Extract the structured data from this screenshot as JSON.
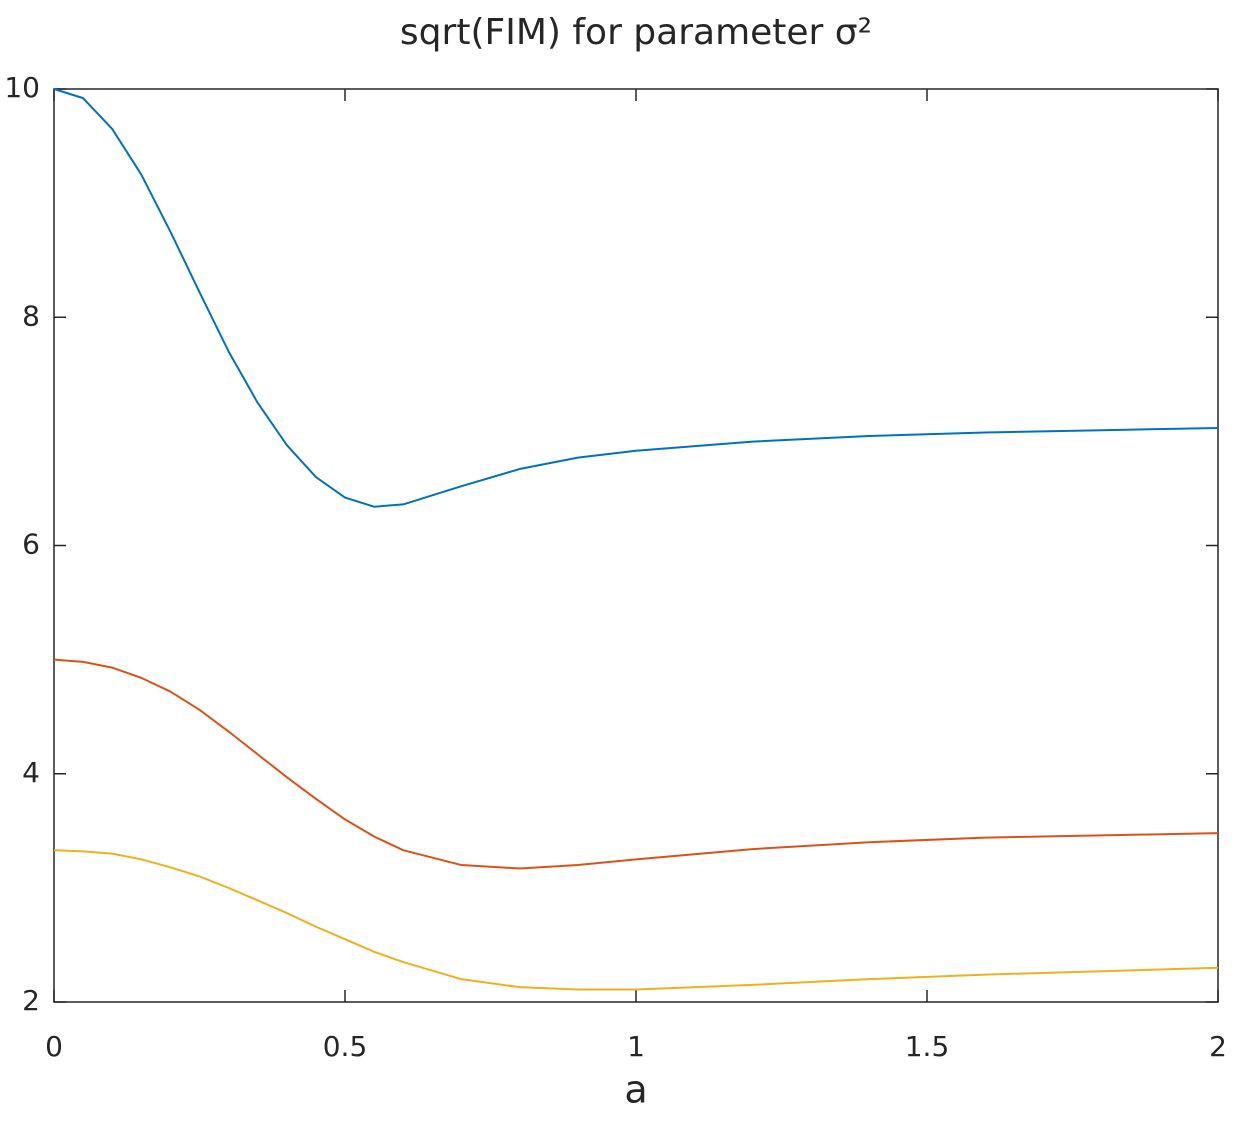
{
  "chart_data": {
    "type": "line",
    "title": "sqrt(FIM) for parameter σ²",
    "x_label": "a",
    "x": [
      0,
      0.05,
      0.1,
      0.15,
      0.2,
      0.25,
      0.3,
      0.35,
      0.4,
      0.45,
      0.5,
      0.55,
      0.6,
      0.7,
      0.8,
      0.9,
      1.0,
      1.2,
      1.4,
      1.6,
      1.8,
      2.0
    ],
    "series": [
      {
        "color": "#0072bd",
        "values": [
          10,
          9.92,
          9.65,
          9.25,
          8.75,
          8.22,
          7.7,
          7.25,
          6.88,
          6.6,
          6.42,
          6.34,
          6.36,
          6.52,
          6.67,
          6.77,
          6.83,
          6.91,
          6.96,
          6.99,
          7.01,
          7.03
        ]
      },
      {
        "color": "#d95319",
        "values": [
          5,
          4.98,
          4.93,
          4.84,
          4.72,
          4.56,
          4.37,
          4.17,
          3.97,
          3.78,
          3.6,
          3.45,
          3.33,
          3.2,
          3.17,
          3.2,
          3.25,
          3.34,
          3.4,
          3.44,
          3.46,
          3.48
        ]
      },
      {
        "color": "#edb120",
        "values": [
          3.33,
          3.32,
          3.3,
          3.25,
          3.18,
          3.1,
          3.0,
          2.89,
          2.78,
          2.66,
          2.55,
          2.44,
          2.35,
          2.2,
          2.13,
          2.11,
          2.11,
          2.15,
          2.2,
          2.24,
          2.27,
          2.3
        ]
      }
    ],
    "xlim": [
      0,
      2
    ],
    "xticks": [
      0,
      0.5,
      1,
      1.5,
      2
    ],
    "ylim": [
      2,
      10
    ],
    "yticks": [
      2,
      4,
      6,
      8,
      10
    ]
  }
}
